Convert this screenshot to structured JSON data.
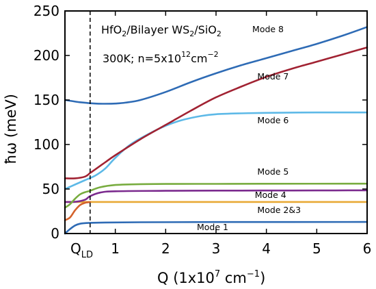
{
  "chart_data": {
    "type": "line",
    "title": "",
    "xlabel": {
      "base": "Q (1x10",
      "sup1": "7",
      "mid": " cm",
      "sup2": "−1",
      "end": ")"
    },
    "ylabel": "ħω (meV)",
    "xlim": [
      0,
      6
    ],
    "ylim": [
      0,
      250
    ],
    "xticks": [
      1,
      2,
      3,
      4,
      5,
      6
    ],
    "yticks": [
      0,
      50,
      100,
      150,
      200,
      250
    ],
    "grid": false,
    "annotations": {
      "line1": {
        "a": "HfO",
        "sub1": "2",
        "b": "/Bilayer WS",
        "sub2": "2",
        "c": "/SiO",
        "sub3": "2"
      },
      "line2": {
        "a": "300K; n=5x10",
        "sup": "12",
        "b": "cm",
        "sup2": "−2"
      },
      "qld": {
        "main": "Q",
        "sub": "LD"
      }
    },
    "vline": {
      "x": 0.5,
      "style": "dashed"
    },
    "series": [
      {
        "name": "Mode 1",
        "color": "#2e6bb5",
        "x": [
          0,
          0.1,
          0.2,
          0.3,
          0.5,
          0.8,
          1.5,
          3,
          6
        ],
        "y": [
          0,
          5,
          9,
          11,
          12,
          12.4,
          12.7,
          12.9,
          13
        ]
      },
      {
        "name": "Mode 2&3 (a)",
        "color": "#e8a935",
        "x": [
          0,
          0.5,
          1,
          2,
          3,
          4,
          5,
          6
        ],
        "y": [
          35.5,
          35.5,
          35.5,
          35.5,
          35.5,
          35.5,
          35.5,
          35.5
        ]
      },
      {
        "name": "Mode 2&3 (b)",
        "color": "#d4622b",
        "x": [
          0,
          0.1,
          0.2,
          0.3,
          0.4,
          0.5
        ],
        "y": [
          15,
          18,
          26,
          32,
          34.5,
          35.3
        ]
      },
      {
        "name": "Mode 4",
        "color": "#7b2a8e",
        "x": [
          0,
          0.2,
          0.4,
          0.5,
          0.7,
          1,
          2,
          3,
          4,
          5,
          6
        ],
        "y": [
          35.5,
          35.6,
          38,
          42,
          46,
          47.5,
          48,
          48.2,
          48.3,
          48.4,
          48.5
        ]
      },
      {
        "name": "Mode 5",
        "color": "#78ac3f",
        "x": [
          0,
          0.1,
          0.2,
          0.3,
          0.4,
          0.5,
          0.7,
          1,
          1.5,
          2,
          3,
          4,
          6
        ],
        "y": [
          29,
          33,
          39,
          44,
          46.5,
          48,
          52,
          54.5,
          55.5,
          55.7,
          55.8,
          55.9,
          56
        ]
      },
      {
        "name": "Mode 6",
        "color": "#5db9e7",
        "x": [
          0,
          0.2,
          0.4,
          0.6,
          0.8,
          1,
          1.3,
          1.7,
          2,
          2.3,
          2.7,
          3,
          3.5,
          4,
          5,
          6
        ],
        "y": [
          50,
          55,
          60,
          65,
          73,
          85,
          100,
          113,
          121,
          127,
          132,
          134,
          135,
          135.5,
          136,
          136
        ]
      },
      {
        "name": "Mode 7",
        "color": "#a12232",
        "x": [
          0,
          0.2,
          0.4,
          0.5,
          0.6,
          0.8,
          1,
          1.5,
          2,
          2.5,
          3,
          3.5,
          4,
          4.5,
          5,
          5.5,
          6
        ],
        "y": [
          62,
          62,
          64,
          68,
          72,
          80,
          88,
          106,
          122,
          138,
          153,
          165,
          176,
          185,
          193,
          201,
          209
        ]
      },
      {
        "name": "Mode 8",
        "color": "#2e6bb5",
        "x": [
          0,
          0.3,
          0.6,
          0.8,
          1,
          1.2,
          1.5,
          2,
          2.5,
          3,
          3.5,
          4,
          4.5,
          5,
          5.5,
          6
        ],
        "y": [
          150,
          147.5,
          146,
          145.8,
          146,
          147,
          150,
          159,
          170,
          180,
          189,
          197,
          205,
          213,
          222,
          232
        ]
      }
    ],
    "mode_labels": [
      {
        "text": "Mode 8",
        "x": 3.72,
        "y": 226
      },
      {
        "text": "Mode 7",
        "x": 3.82,
        "y": 173
      },
      {
        "text": "Mode 6",
        "x": 3.82,
        "y": 124
      },
      {
        "text": "Mode 5",
        "x": 3.82,
        "y": 66
      },
      {
        "text": "Mode 4",
        "x": 3.77,
        "y": 40
      },
      {
        "text": "Mode 2&3",
        "x": 3.82,
        "y": 23
      },
      {
        "text": "Mode 1",
        "x": 2.62,
        "y": 4
      }
    ]
  }
}
